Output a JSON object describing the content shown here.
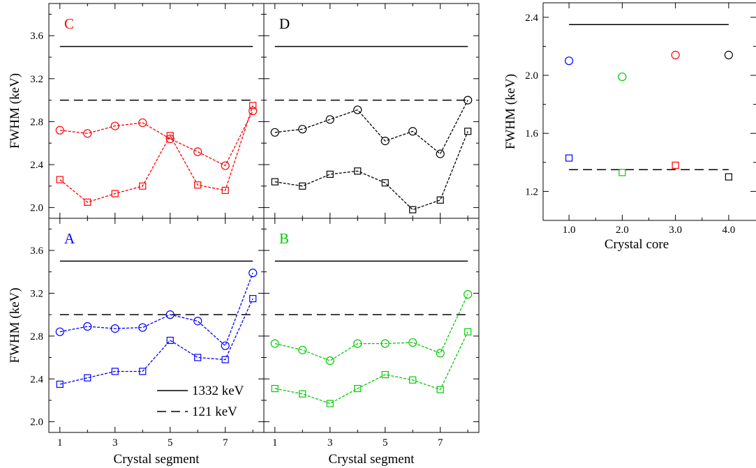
{
  "chart_data": [
    {
      "type": "line",
      "panel_label": "C",
      "color": "#ff0000",
      "xlabel": "",
      "ylabel": "FWHM (keV)",
      "x": [
        1,
        2,
        3,
        4,
        5,
        6,
        7,
        8
      ],
      "ylim": [
        1.9,
        3.9
      ],
      "yticks": [
        "2.0",
        "2.4",
        "2.8",
        "3.2",
        "3.6"
      ],
      "xticks": [],
      "reference_lines": [
        {
          "value": 3.5,
          "style": "solid"
        },
        {
          "value": 3.0,
          "style": "dashed"
        }
      ],
      "series": [
        {
          "marker": "circle",
          "values": [
            2.72,
            2.69,
            2.76,
            2.79,
            2.64,
            2.52,
            2.39,
            2.9
          ]
        },
        {
          "marker": "square",
          "values": [
            2.26,
            2.05,
            2.13,
            2.2,
            2.67,
            2.21,
            2.16,
            2.95
          ]
        }
      ]
    },
    {
      "type": "line",
      "panel_label": "D",
      "color": "#000000",
      "xlabel": "",
      "ylabel": "",
      "x": [
        1,
        2,
        3,
        4,
        5,
        6,
        7,
        8
      ],
      "ylim": [
        1.9,
        3.9
      ],
      "yticks": [],
      "xticks": [],
      "reference_lines": [
        {
          "value": 3.5,
          "style": "solid"
        },
        {
          "value": 3.0,
          "style": "dashed"
        }
      ],
      "series": [
        {
          "marker": "circle",
          "values": [
            2.7,
            2.73,
            2.82,
            2.91,
            2.62,
            2.71,
            2.5,
            3.0
          ]
        },
        {
          "marker": "square",
          "values": [
            2.24,
            2.2,
            2.31,
            2.34,
            2.23,
            1.98,
            2.07,
            2.71
          ]
        }
      ]
    },
    {
      "type": "line",
      "panel_label": "A",
      "color": "#0000ff",
      "xlabel": "Crystal segment",
      "ylabel": "FWHM (keV)",
      "x": [
        1,
        2,
        3,
        4,
        5,
        6,
        7,
        8
      ],
      "ylim": [
        1.9,
        3.9
      ],
      "yticks": [
        "2.0",
        "2.4",
        "2.8",
        "3.2",
        "3.6"
      ],
      "xticks": [
        "1",
        "3",
        "5",
        "7"
      ],
      "reference_lines": [
        {
          "value": 3.5,
          "style": "solid"
        },
        {
          "value": 3.0,
          "style": "dashed"
        }
      ],
      "legend": [
        {
          "label": "1332 keV",
          "style": "solid"
        },
        {
          "label": "121 keV",
          "style": "dashed"
        }
      ],
      "series": [
        {
          "marker": "circle",
          "values": [
            2.84,
            2.89,
            2.87,
            2.88,
            3.0,
            2.94,
            2.71,
            3.39
          ]
        },
        {
          "marker": "square",
          "values": [
            2.35,
            2.41,
            2.47,
            2.47,
            2.76,
            2.6,
            2.58,
            3.15
          ]
        }
      ]
    },
    {
      "type": "line",
      "panel_label": "B",
      "color": "#00cc00",
      "xlabel": "Crystal segment",
      "ylabel": "",
      "x": [
        1,
        2,
        3,
        4,
        5,
        6,
        7,
        8
      ],
      "ylim": [
        1.9,
        3.9
      ],
      "yticks": [],
      "xticks": [
        "1",
        "3",
        "5",
        "7"
      ],
      "reference_lines": [
        {
          "value": 3.5,
          "style": "solid"
        },
        {
          "value": 3.0,
          "style": "dashed"
        }
      ],
      "series": [
        {
          "marker": "circle",
          "values": [
            2.73,
            2.67,
            2.57,
            2.73,
            2.73,
            2.74,
            2.64,
            3.19
          ]
        },
        {
          "marker": "square",
          "values": [
            2.31,
            2.26,
            2.17,
            2.31,
            2.44,
            2.39,
            2.3,
            2.84
          ]
        }
      ]
    },
    {
      "type": "scatter",
      "panel_label": "",
      "xlabel": "Crystal core",
      "ylabel": "FWHM (keV)",
      "xlim": [
        0.5,
        4.5
      ],
      "ylim": [
        1.0,
        2.5
      ],
      "xticks": [
        "1.0",
        "2.0",
        "3.0",
        "4.0"
      ],
      "yticks": [
        "1.2",
        "1.6",
        "2.0",
        "2.4"
      ],
      "reference_lines": [
        {
          "value": 2.35,
          "style": "solid"
        },
        {
          "value": 1.35,
          "style": "dashed"
        }
      ],
      "points": [
        {
          "x": 1,
          "y": 2.1,
          "marker": "circle",
          "color": "#0000ff"
        },
        {
          "x": 1,
          "y": 1.43,
          "marker": "square",
          "color": "#0000ff"
        },
        {
          "x": 2,
          "y": 1.99,
          "marker": "circle",
          "color": "#00cc00"
        },
        {
          "x": 2,
          "y": 1.33,
          "marker": "square",
          "color": "#00cc00"
        },
        {
          "x": 3,
          "y": 2.14,
          "marker": "circle",
          "color": "#ff0000"
        },
        {
          "x": 3,
          "y": 1.38,
          "marker": "square",
          "color": "#ff0000"
        },
        {
          "x": 4,
          "y": 2.14,
          "marker": "circle",
          "color": "#000000"
        },
        {
          "x": 4,
          "y": 1.3,
          "marker": "square",
          "color": "#000000"
        }
      ]
    }
  ]
}
